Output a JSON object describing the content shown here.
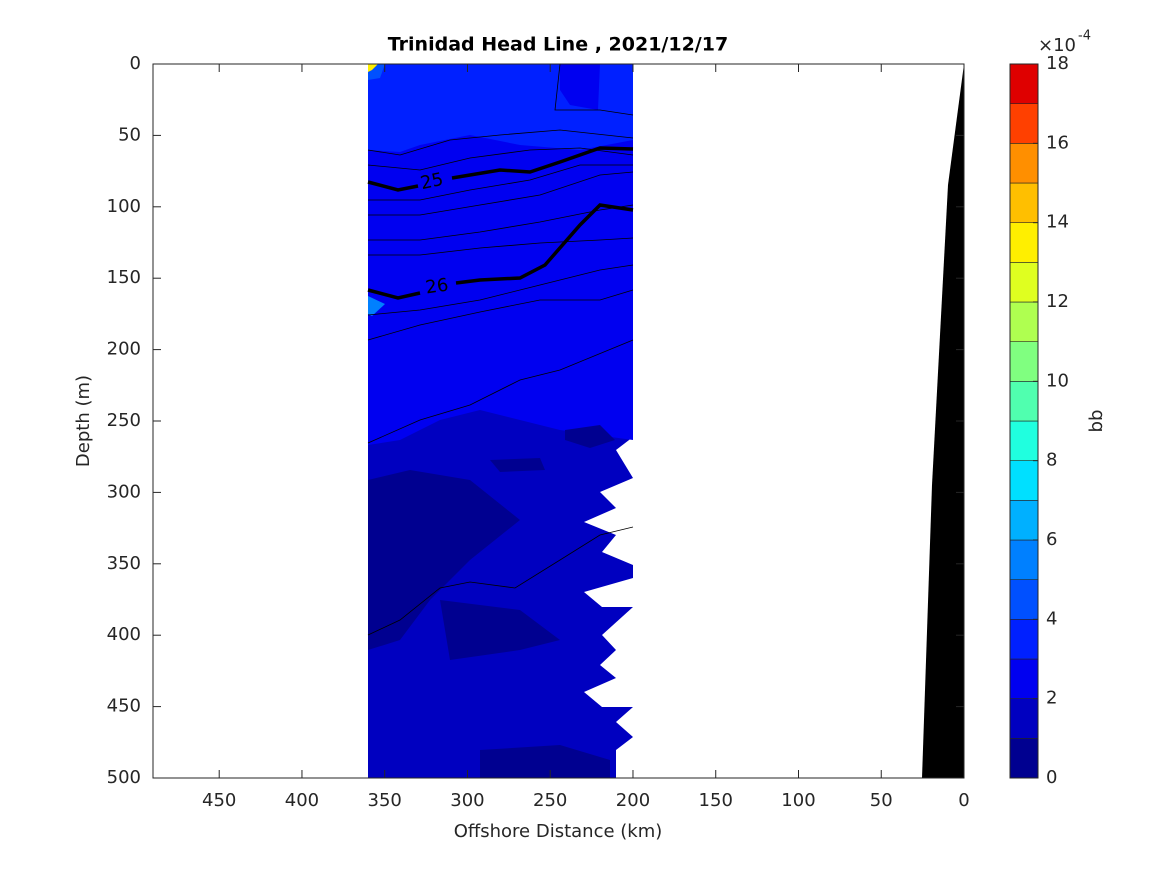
{
  "chart_data": {
    "type": "contour",
    "title": "Trinidad Head Line , 2021/12/17",
    "x_label": "Offshore Distance (km)",
    "y_label": "Depth (m)",
    "xlim": [
      490,
      0
    ],
    "xticks": [
      450,
      400,
      350,
      300,
      250,
      200,
      150,
      100,
      50,
      0
    ],
    "ylim": [
      0,
      500
    ],
    "yticks": [
      0,
      50,
      100,
      150,
      200,
      250,
      300,
      350,
      400,
      450,
      500
    ],
    "colorbar": {
      "label": "bb",
      "multiplier": "×10",
      "exponent": "-4",
      "clim": [
        0,
        18
      ],
      "ticks": [
        0,
        2,
        4,
        6,
        8,
        10,
        12,
        14,
        16,
        18
      ],
      "levels": [
        0,
        1,
        2,
        3,
        4,
        5,
        6,
        7,
        8,
        9,
        10,
        11,
        12,
        13,
        14,
        15,
        16,
        17,
        18
      ],
      "colors": [
        "#000090",
        "#0000c0",
        "#0000f0",
        "#0020ff",
        "#0050ff",
        "#0080ff",
        "#00b0ff",
        "#00e0ff",
        "#20ffdf",
        "#50ffaf",
        "#80ff80",
        "#afff50",
        "#dfff20",
        "#ffef00",
        "#ffbf00",
        "#ff8f00",
        "#ff4000",
        "#df0000",
        "#a00000"
      ]
    },
    "contours": [
      25,
      26
    ]
  }
}
